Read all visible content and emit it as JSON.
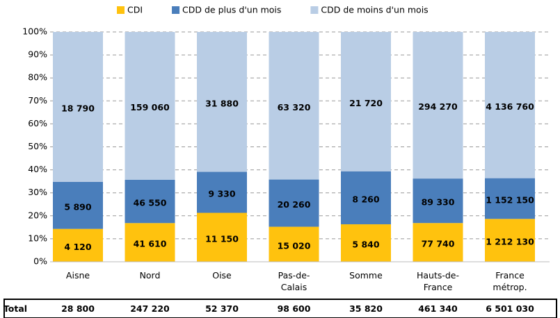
{
  "chart_data": {
    "type": "bar",
    "stacked": "percent",
    "categories": [
      "Aisne",
      "Nord",
      "Oise",
      "Pas-de-\nCalais",
      "Somme",
      "Hauts-de-\nFrance",
      "France\nmétrop."
    ],
    "series": [
      {
        "name": "CDI",
        "color": "#ffc20e",
        "values": [
          4120,
          41610,
          11150,
          15020,
          5840,
          77740,
          1212130
        ],
        "value_labels": [
          "4 120",
          "41 610",
          "11 150",
          "15 020",
          "5 840",
          "77 740",
          "1 212 130"
        ]
      },
      {
        "name": "CDD de plus d'un mois",
        "color": "#4a7ebb",
        "values": [
          5890,
          46550,
          9330,
          20260,
          8260,
          89330,
          1152150
        ],
        "value_labels": [
          "5 890",
          "46 550",
          "9 330",
          "20 260",
          "8 260",
          "89 330",
          "1 152 150"
        ]
      },
      {
        "name": "CDD de moins d'un mois",
        "color": "#b9cde5",
        "values": [
          18790,
          159060,
          31880,
          63320,
          21720,
          294270,
          4136760
        ],
        "value_labels": [
          "18 790",
          "159 060",
          "31 880",
          "63 320",
          "21 720",
          "294 270",
          "4 136 760"
        ]
      }
    ],
    "ylim": [
      0,
      100
    ],
    "yticks": [
      {
        "value": 0,
        "label": "0%"
      },
      {
        "value": 10,
        "label": "10%"
      },
      {
        "value": 20,
        "label": "20%"
      },
      {
        "value": 30,
        "label": "30%"
      },
      {
        "value": 40,
        "label": "40%"
      },
      {
        "value": 50,
        "label": "50%"
      },
      {
        "value": 60,
        "label": "60%"
      },
      {
        "value": 70,
        "label": "70%"
      },
      {
        "value": 80,
        "label": "80%"
      },
      {
        "value": 90,
        "label": "90%"
      },
      {
        "value": 100,
        "label": "100%"
      }
    ],
    "grid": true,
    "legend": "top",
    "total_title": "Total",
    "totals": [
      28800,
      247220,
      52370,
      98600,
      35820,
      461340,
      6501030
    ],
    "total_labels": [
      "28 800",
      "247 220",
      "52 370",
      "98 600",
      "35 820",
      "461 340",
      "6 501 030"
    ]
  }
}
